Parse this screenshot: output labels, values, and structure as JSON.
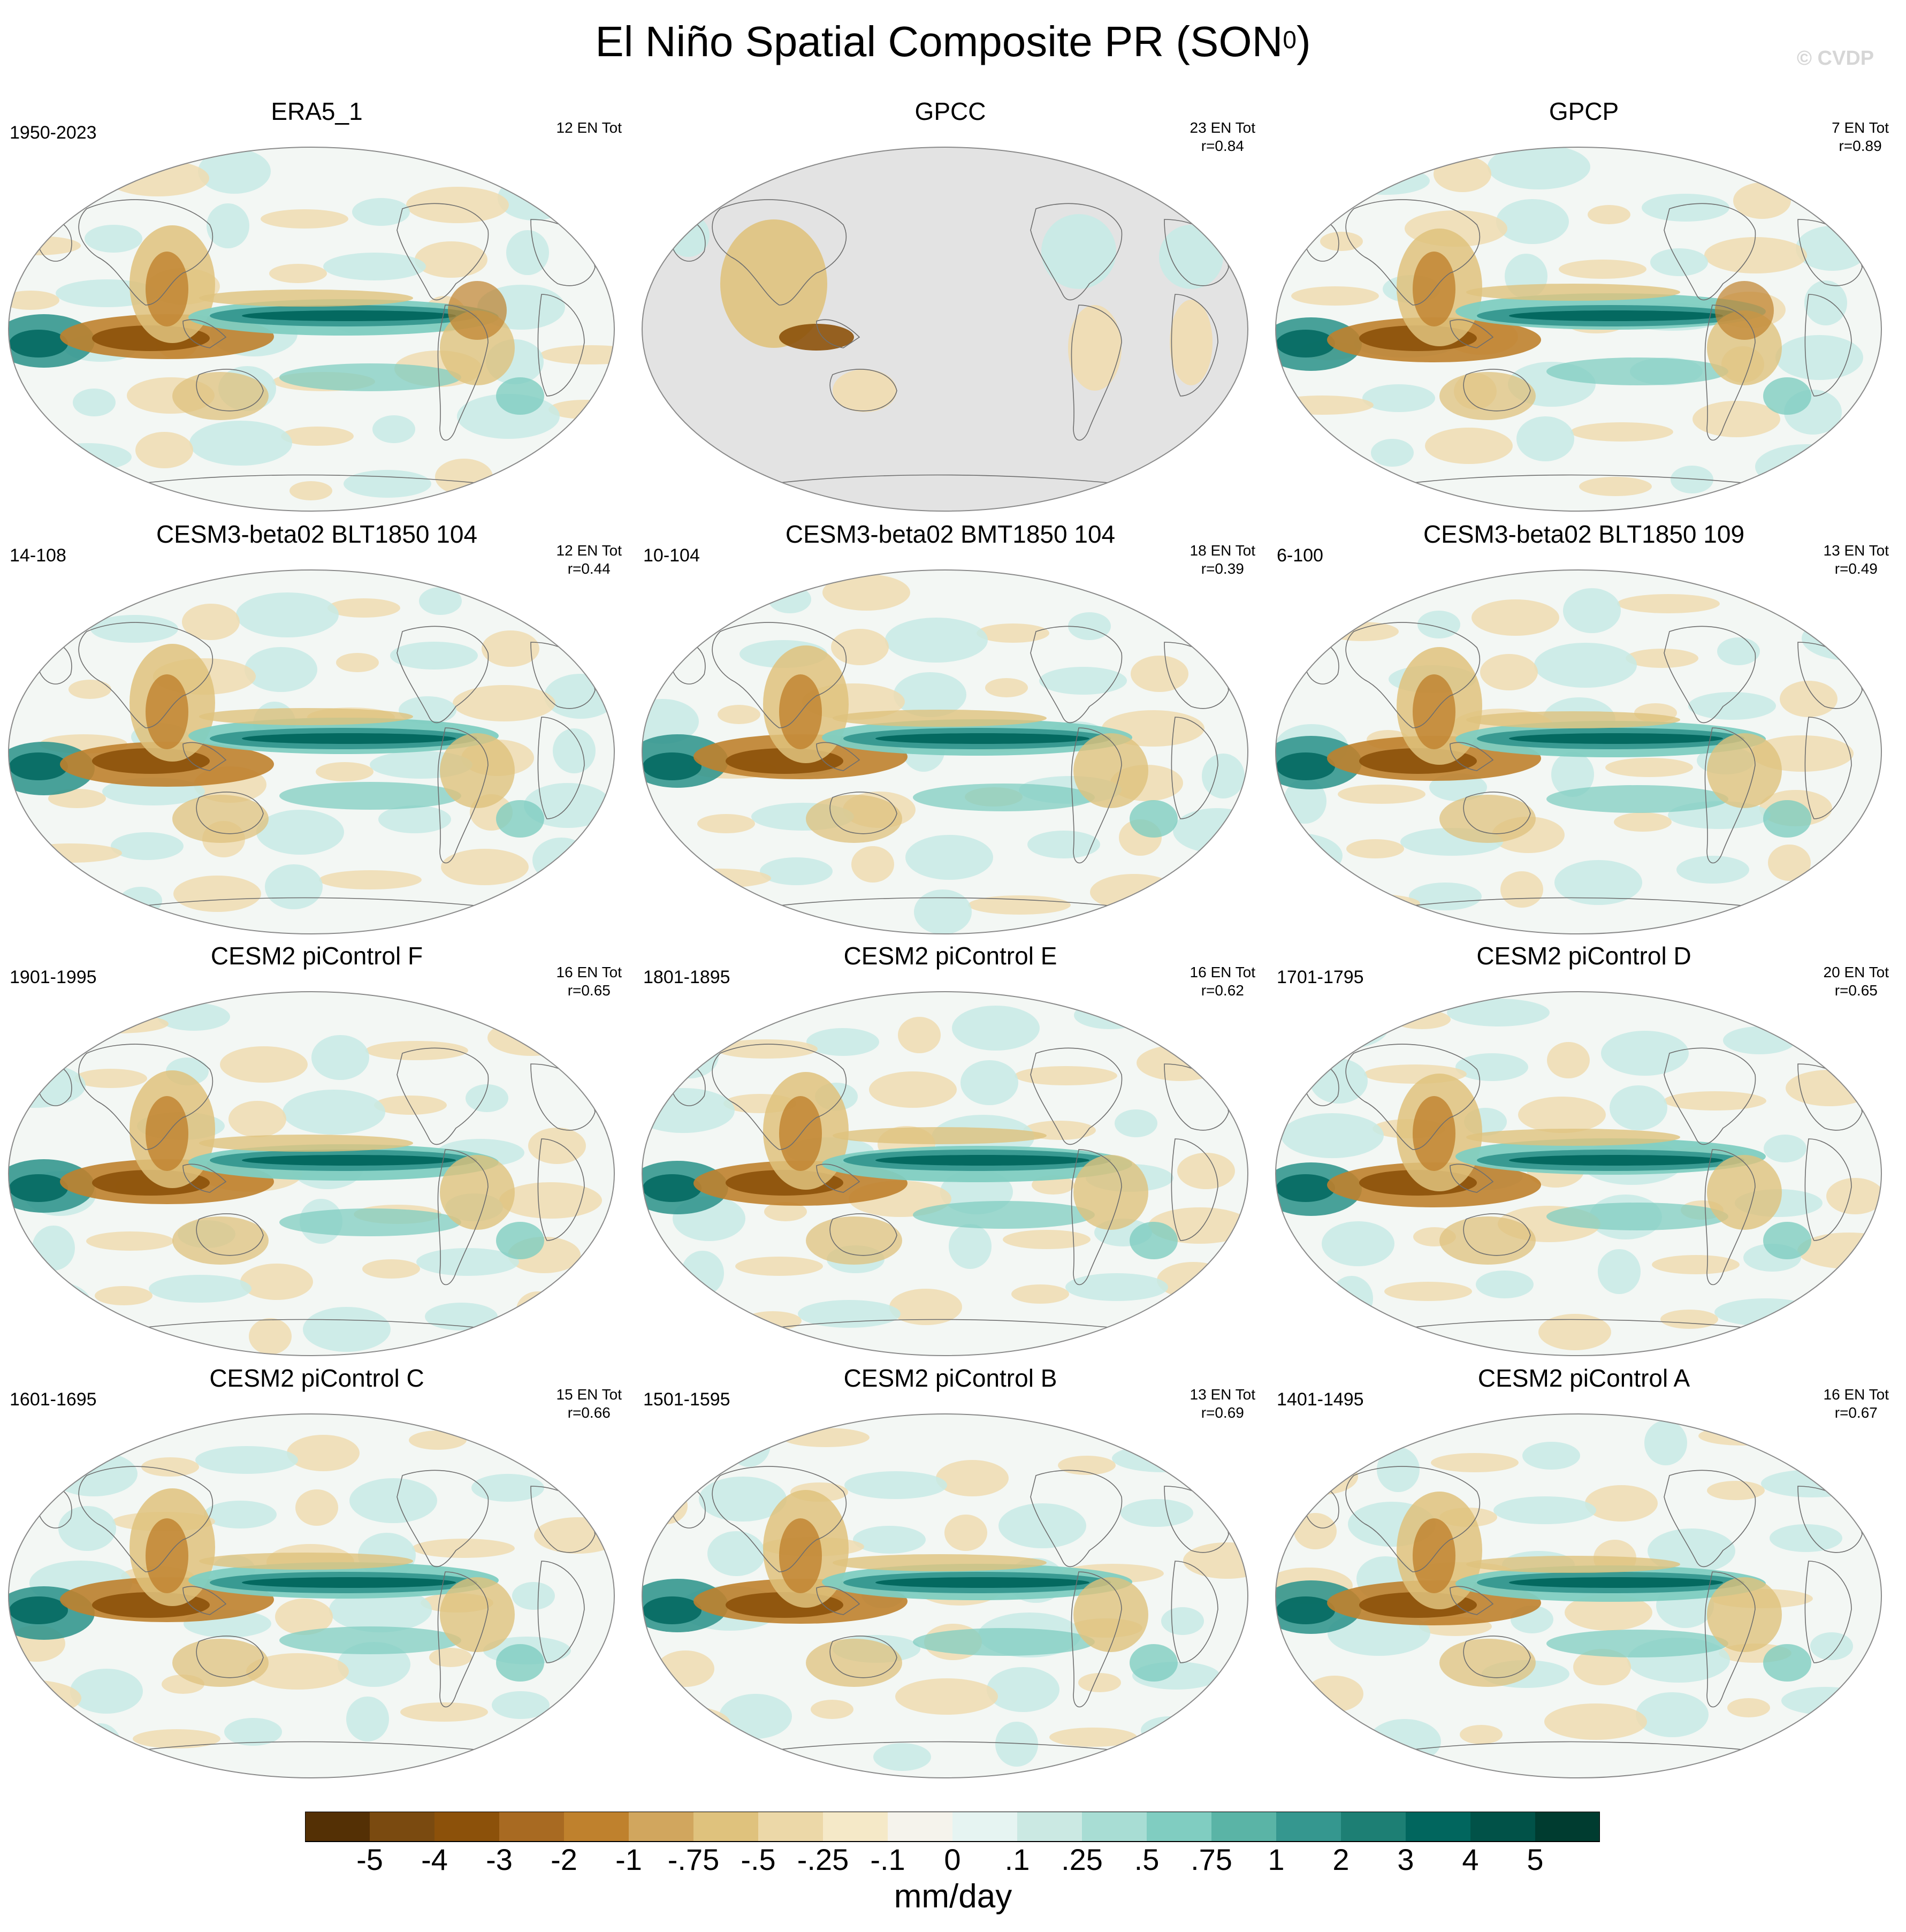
{
  "figure": {
    "title_main": "El Niño Spatial Composite PR (SON",
    "title_sup": "0",
    "title_close": ")",
    "watermark": "© CVDP"
  },
  "colorbar": {
    "units": "mm/day",
    "labels": [
      "-5",
      "-4",
      "-3",
      "-2",
      "-1",
      "-.75",
      "-.5",
      "-.25",
      "-.1",
      "0",
      ".1",
      ".25",
      ".5",
      ".75",
      "1",
      "2",
      "3",
      "4",
      "5"
    ],
    "colors": [
      "#543005",
      "#7a4a10",
      "#8c510a",
      "#a86a22",
      "#bf812d",
      "#d1a65e",
      "#dfc27d",
      "#ecd8a8",
      "#f5e9c8",
      "#f5f3ec",
      "#e6f4f2",
      "#cbe9e3",
      "#a8ddd4",
      "#80cdc1",
      "#5ab4a6",
      "#35978f",
      "#1d7f74",
      "#01665e",
      "#015248",
      "#003c30"
    ]
  },
  "panels": [
    {
      "title": "ERA5_1",
      "years": "1950-2023",
      "count": "12 EN Tot",
      "r": "",
      "style": "obs"
    },
    {
      "title": "GPCC",
      "years": "",
      "count": "23 EN Tot",
      "r": "r=0.84",
      "style": "land"
    },
    {
      "title": "GPCP",
      "years": "",
      "count": "7 EN Tot",
      "r": "r=0.89",
      "style": "obs"
    },
    {
      "title": "CESM3-beta02 BLT1850 104",
      "years": "14-108",
      "count": "12 EN Tot",
      "r": "r=0.44",
      "style": "model"
    },
    {
      "title": "CESM3-beta02 BMT1850 104",
      "years": "10-104",
      "count": "18 EN Tot",
      "r": "r=0.39",
      "style": "model"
    },
    {
      "title": "CESM3-beta02 BLT1850 109",
      "years": "6-100",
      "count": "13 EN Tot",
      "r": "r=0.49",
      "style": "model"
    },
    {
      "title": "CESM2 piControl F",
      "years": "1901-1995",
      "count": "16 EN Tot",
      "r": "r=0.65",
      "style": "model"
    },
    {
      "title": "CESM2 piControl E",
      "years": "1801-1895",
      "count": "16 EN Tot",
      "r": "r=0.62",
      "style": "model"
    },
    {
      "title": "CESM2 piControl D",
      "years": "1701-1795",
      "count": "20 EN Tot",
      "r": "r=0.65",
      "style": "model"
    },
    {
      "title": "CESM2 piControl C",
      "years": "1601-1695",
      "count": "15 EN Tot",
      "r": "r=0.66",
      "style": "model"
    },
    {
      "title": "CESM2 piControl B",
      "years": "1501-1595",
      "count": "13 EN Tot",
      "r": "r=0.69",
      "style": "model"
    },
    {
      "title": "CESM2 piControl A",
      "years": "1401-1495",
      "count": "16 EN Tot",
      "r": "r=0.67",
      "style": "model"
    }
  ]
}
